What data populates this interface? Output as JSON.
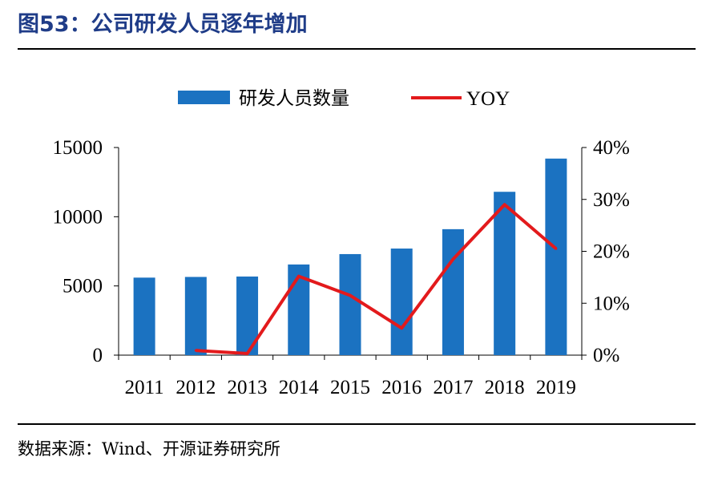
{
  "title": "图53：公司研发人员逐年增加",
  "source": "数据来源：Wind、开源证券研究所",
  "colors": {
    "bar": "#1B72C1",
    "line": "#E31A1C",
    "title": "#1F3C88"
  },
  "chart_data": {
    "type": "bar",
    "categories": [
      "2011",
      "2012",
      "2013",
      "2014",
      "2015",
      "2016",
      "2017",
      "2018",
      "2019"
    ],
    "series": [
      {
        "name": "研发人员数量",
        "type": "bar",
        "axis": "left",
        "values": [
          5600,
          5650,
          5680,
          6550,
          7300,
          7700,
          9100,
          11800,
          14200
        ]
      },
      {
        "name": "YOY",
        "type": "line",
        "axis": "right",
        "values": [
          null,
          0.9,
          0.3,
          15.2,
          11.5,
          5.2,
          18.5,
          29.0,
          20.5
        ]
      }
    ],
    "left_axis": {
      "min": 0,
      "max": 15000,
      "ticks": [
        "0",
        "5000",
        "10000",
        "15000"
      ],
      "tick_values": [
        0,
        5000,
        10000,
        15000
      ]
    },
    "right_axis": {
      "min": 0,
      "max": 40,
      "ticks": [
        "0%",
        "10%",
        "20%",
        "30%",
        "40%"
      ],
      "tick_values": [
        0,
        10,
        20,
        30,
        40
      ]
    },
    "legend_position": "top-center",
    "grid": false
  }
}
